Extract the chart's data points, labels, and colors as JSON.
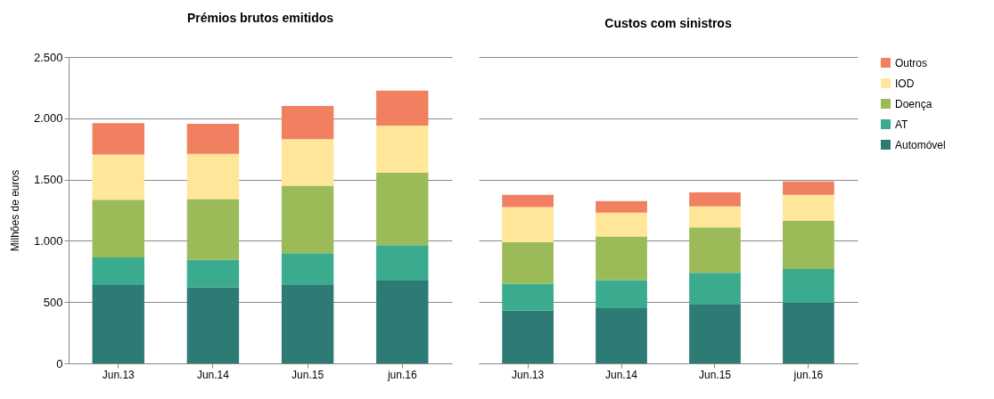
{
  "chart_data": [
    {
      "type": "bar",
      "title": "Prémios brutos emitidos",
      "ylabel": "Milhões de euros",
      "stacked": true,
      "categories": [
        "Jun.13",
        "Jun.14",
        "Jun.15",
        "jun.16"
      ],
      "series": [
        {
          "name": "Automóvel",
          "color": "#2e7b76",
          "values": [
            640,
            620,
            645,
            675
          ]
        },
        {
          "name": "AT",
          "color": "#3aab8f",
          "values": [
            225,
            225,
            255,
            290
          ]
        },
        {
          "name": "Doença",
          "color": "#9bbb59",
          "values": [
            470,
            495,
            550,
            590
          ]
        },
        {
          "name": "IOD",
          "color": "#ffe699",
          "values": [
            370,
            370,
            380,
            385
          ]
        },
        {
          "name": "Outros",
          "color": "#f08060",
          "values": [
            255,
            245,
            270,
            285
          ]
        }
      ],
      "ylim": [
        0,
        2500
      ],
      "yticks": [
        0,
        {
          "value": 500,
          "label": "500"
        },
        {
          "value": 1000,
          "label": "1.000"
        },
        {
          "value": 1500,
          "label": "1.500"
        },
        {
          "value": 2000,
          "label": "2.000"
        },
        {
          "value": 2500,
          "label": "2.500"
        }
      ],
      "grid": "y",
      "legend": "right"
    },
    {
      "type": "bar",
      "title": "Custos com sinistros",
      "stacked": true,
      "categories": [
        "Jun.13",
        "Jun.14",
        "Jun.15",
        "jun.16"
      ],
      "series": [
        {
          "name": "Automóvel",
          "color": "#2e7b76",
          "values": [
            430,
            450,
            480,
            495
          ]
        },
        {
          "name": "AT",
          "color": "#3aab8f",
          "values": [
            220,
            230,
            260,
            275
          ]
        },
        {
          "name": "Doença",
          "color": "#9bbb59",
          "values": [
            340,
            355,
            370,
            395
          ]
        },
        {
          "name": "IOD",
          "color": "#ffe699",
          "values": [
            285,
            195,
            170,
            210
          ]
        },
        {
          "name": "Outros",
          "color": "#f08060",
          "values": [
            100,
            95,
            115,
            110
          ]
        }
      ],
      "ylim": [
        0,
        2500
      ],
      "yticks": [
        0,
        500,
        1000,
        1500,
        2000,
        2500
      ],
      "grid": "y",
      "legend": "right",
      "tick_labels": "x"
    }
  ]
}
